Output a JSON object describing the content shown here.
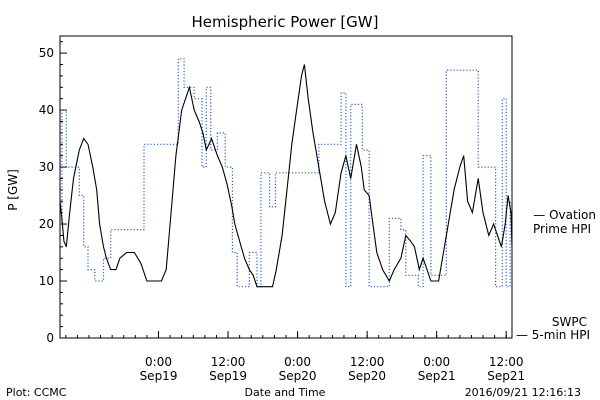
{
  "chart_data": {
    "type": "line",
    "title": "Hemispheric Power [GW]",
    "ylabel": "P [GW]",
    "xlabel": "Date and Time",
    "ylim": [
      0,
      53
    ],
    "xlim": [
      "2016-09-18 07:00",
      "2016-09-21 13:00"
    ],
    "yticks": [
      "0",
      "10",
      "20",
      "30",
      "40",
      "50"
    ],
    "xticks": [
      {
        "time": "0:00",
        "date": "Sep19"
      },
      {
        "time": "12:00",
        "date": "Sep19"
      },
      {
        "time": "0:00",
        "date": "Sep20"
      },
      {
        "time": "12:00",
        "date": "Sep20"
      },
      {
        "time": "0:00",
        "date": "Sep21"
      },
      {
        "time": "12:00",
        "date": "Sep21"
      }
    ],
    "series": [
      {
        "name": "Ovation Prime HPI",
        "color": "#1f5fd0",
        "style": "dotted",
        "step": true,
        "points": [
          [
            "2016-09-18 07:00",
            20
          ],
          [
            "2016-09-18 07:20",
            40
          ],
          [
            "2016-09-18 08:05",
            30
          ],
          [
            "2016-09-18 10:20",
            25
          ],
          [
            "2016-09-18 11:05",
            16
          ],
          [
            "2016-09-18 11:50",
            12
          ],
          [
            "2016-09-18 13:00",
            10
          ],
          [
            "2016-09-18 14:30",
            14
          ],
          [
            "2016-09-18 15:45",
            19
          ],
          [
            "2016-09-18 21:30",
            34
          ],
          [
            "2016-09-19 03:25",
            49
          ],
          [
            "2016-09-19 04:25",
            44
          ],
          [
            "2016-09-19 06:10",
            42
          ],
          [
            "2016-09-19 07:30",
            30
          ],
          [
            "2016-09-19 08:15",
            44
          ],
          [
            "2016-09-19 09:00",
            33
          ],
          [
            "2016-09-19 10:10",
            36
          ],
          [
            "2016-09-19 11:30",
            30
          ],
          [
            "2016-09-19 12:45",
            15
          ],
          [
            "2016-09-19 13:35",
            9
          ],
          [
            "2016-09-19 15:40",
            15
          ],
          [
            "2016-09-19 17:00",
            9
          ],
          [
            "2016-09-19 17:40",
            29
          ],
          [
            "2016-09-19 19:10",
            23
          ],
          [
            "2016-09-19 20:10",
            29
          ],
          [
            "2016-09-20 03:40",
            34
          ],
          [
            "2016-09-20 07:30",
            43
          ],
          [
            "2016-09-20 08:20",
            9
          ],
          [
            "2016-09-20 09:10",
            41
          ],
          [
            "2016-09-20 11:10",
            33
          ],
          [
            "2016-09-20 12:20",
            9
          ],
          [
            "2016-09-20 15:50",
            21
          ],
          [
            "2016-09-20 17:50",
            19
          ],
          [
            "2016-09-20 18:40",
            11
          ],
          [
            "2016-09-20 20:50",
            9
          ],
          [
            "2016-09-20 21:40",
            32
          ],
          [
            "2016-09-20 23:00",
            11
          ],
          [
            "2016-09-21 01:40",
            47
          ],
          [
            "2016-09-21 07:10",
            30
          ],
          [
            "2016-09-21 10:10",
            9
          ],
          [
            "2016-09-21 11:20",
            42
          ],
          [
            "2016-09-21 12:00",
            9
          ],
          [
            "2016-09-21 12:40",
            24
          ],
          [
            "2016-09-21 13:00",
            24
          ]
        ]
      },
      {
        "name": "SWPC 5-min HPI",
        "color": "#000000",
        "style": "solid",
        "step": false,
        "points": [
          [
            "2016-09-18 07:00",
            24
          ],
          [
            "2016-09-18 07:20",
            21
          ],
          [
            "2016-09-18 07:40",
            17
          ],
          [
            "2016-09-18 08:05",
            16
          ],
          [
            "2016-09-18 08:40",
            22
          ],
          [
            "2016-09-18 09:20",
            28
          ],
          [
            "2016-09-18 10:20",
            33
          ],
          [
            "2016-09-18 11:05",
            35
          ],
          [
            "2016-09-18 11:50",
            34
          ],
          [
            "2016-09-18 12:40",
            30
          ],
          [
            "2016-09-18 13:20",
            26
          ],
          [
            "2016-09-18 13:50",
            20
          ],
          [
            "2016-09-18 14:30",
            16
          ],
          [
            "2016-09-18 15:00",
            14
          ],
          [
            "2016-09-18 15:45",
            12
          ],
          [
            "2016-09-18 16:40",
            12
          ],
          [
            "2016-09-18 17:20",
            14
          ],
          [
            "2016-09-18 18:30",
            15
          ],
          [
            "2016-09-18 19:50",
            15
          ],
          [
            "2016-09-18 21:00",
            13
          ],
          [
            "2016-09-18 22:00",
            10
          ],
          [
            "2016-09-18 23:20",
            10
          ],
          [
            "2016-09-19 00:30",
            10
          ],
          [
            "2016-09-19 01:20",
            12
          ],
          [
            "2016-09-19 02:00",
            20
          ],
          [
            "2016-09-19 03:00",
            32
          ],
          [
            "2016-09-19 04:00",
            40
          ],
          [
            "2016-09-19 05:20",
            44
          ],
          [
            "2016-09-19 06:10",
            40
          ],
          [
            "2016-09-19 07:00",
            38
          ],
          [
            "2016-09-19 07:40",
            36
          ],
          [
            "2016-09-19 08:15",
            33
          ],
          [
            "2016-09-19 09:10",
            35
          ],
          [
            "2016-09-19 10:10",
            32
          ],
          [
            "2016-09-19 11:00",
            30
          ],
          [
            "2016-09-19 11:50",
            27
          ],
          [
            "2016-09-19 12:40",
            23
          ],
          [
            "2016-09-19 13:10",
            20
          ],
          [
            "2016-09-19 14:00",
            17
          ],
          [
            "2016-09-19 14:50",
            14
          ],
          [
            "2016-09-19 15:40",
            12
          ],
          [
            "2016-09-19 16:20",
            11
          ],
          [
            "2016-09-19 17:00",
            9
          ],
          [
            "2016-09-19 18:20",
            9
          ],
          [
            "2016-09-19 19:40",
            9
          ],
          [
            "2016-09-19 20:20",
            12
          ],
          [
            "2016-09-19 21:20",
            18
          ],
          [
            "2016-09-19 22:10",
            26
          ],
          [
            "2016-09-19 23:00",
            34
          ],
          [
            "2016-09-19 23:50",
            40
          ],
          [
            "2016-09-20 00:40",
            46
          ],
          [
            "2016-09-20 01:10",
            48
          ],
          [
            "2016-09-20 01:50",
            42
          ],
          [
            "2016-09-20 02:40",
            36
          ],
          [
            "2016-09-20 03:40",
            30
          ],
          [
            "2016-09-20 04:40",
            24
          ],
          [
            "2016-09-20 05:40",
            20
          ],
          [
            "2016-09-20 06:30",
            22
          ],
          [
            "2016-09-20 07:30",
            29
          ],
          [
            "2016-09-20 08:20",
            32
          ],
          [
            "2016-09-20 09:10",
            28
          ],
          [
            "2016-09-20 10:10",
            34
          ],
          [
            "2016-09-20 11:00",
            30
          ],
          [
            "2016-09-20 11:30",
            26
          ],
          [
            "2016-09-20 12:20",
            25
          ],
          [
            "2016-09-20 13:00",
            20
          ],
          [
            "2016-09-20 13:40",
            15
          ],
          [
            "2016-09-20 14:40",
            12
          ],
          [
            "2016-09-20 15:50",
            10
          ],
          [
            "2016-09-20 16:40",
            12
          ],
          [
            "2016-09-20 17:50",
            14
          ],
          [
            "2016-09-20 18:40",
            18
          ],
          [
            "2016-09-20 19:30",
            17
          ],
          [
            "2016-09-20 20:10",
            16
          ],
          [
            "2016-09-20 21:00",
            12
          ],
          [
            "2016-09-20 21:40",
            14
          ],
          [
            "2016-09-20 22:20",
            12
          ],
          [
            "2016-09-20 23:00",
            10
          ],
          [
            "2016-09-21 00:20",
            10
          ],
          [
            "2016-09-21 01:00",
            14
          ],
          [
            "2016-09-21 02:00",
            20
          ],
          [
            "2016-09-21 03:00",
            26
          ],
          [
            "2016-09-21 04:00",
            30
          ],
          [
            "2016-09-21 04:40",
            32
          ],
          [
            "2016-09-21 05:20",
            24
          ],
          [
            "2016-09-21 06:10",
            22
          ],
          [
            "2016-09-21 07:10",
            28
          ],
          [
            "2016-09-21 08:00",
            22
          ],
          [
            "2016-09-21 09:00",
            18
          ],
          [
            "2016-09-21 09:50",
            20
          ],
          [
            "2016-09-21 10:30",
            18
          ],
          [
            "2016-09-21 11:10",
            16
          ],
          [
            "2016-09-21 11:50",
            20
          ],
          [
            "2016-09-21 12:20",
            25
          ],
          [
            "2016-09-21 12:50",
            22
          ],
          [
            "2016-09-21 13:00",
            16
          ]
        ]
      }
    ],
    "legend": {
      "ovation": [
        "— Ovation",
        "Prime HPI"
      ],
      "swpc": [
        "SWPC",
        "— 5-min HPI"
      ]
    },
    "footer": {
      "left": "Plot: CCMC",
      "right": "2016/09/21 12:16:13"
    },
    "grid": false
  }
}
